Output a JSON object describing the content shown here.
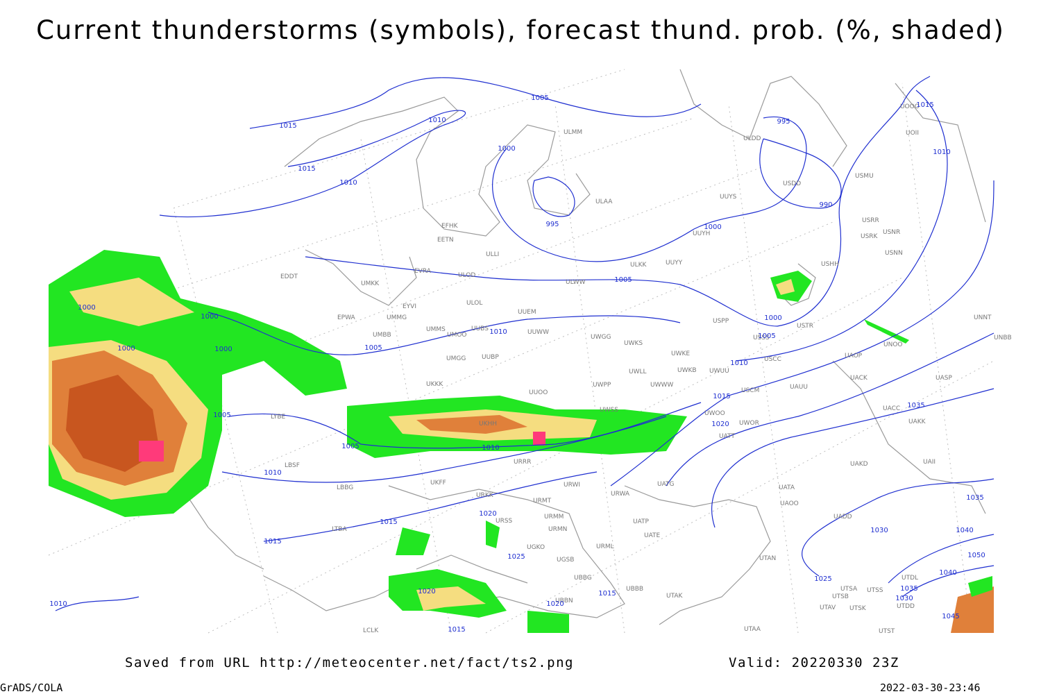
{
  "header": {
    "title": "Current thunderstorms (symbols), forecast thund. prob. (%, shaded)"
  },
  "map": {
    "isobar_labels": [
      1015,
      1015,
      1010,
      1010,
      1005,
      1000,
      995,
      1005,
      1000,
      995,
      990,
      1015,
      1010,
      1000,
      1005,
      1010,
      1015,
      1020,
      1035,
      1035,
      1040,
      1030,
      1050,
      1040,
      1025,
      1035,
      1030,
      1045,
      1000,
      1000,
      1000,
      1000,
      1005,
      1010,
      1005,
      1005,
      1010,
      1010,
      1015,
      1015,
      1020,
      1025,
      1020,
      1020,
      1015,
      1015,
      1010
    ],
    "station_labels": [
      "EFHK",
      "EETN",
      "EVRA",
      "ULOD",
      "UMKK",
      "EYVI",
      "ULOL",
      "UUEM",
      "UMMG",
      "EPWA",
      "UMMS",
      "UMOO",
      "UUBS",
      "UUWW",
      "UMBB",
      "UMGG",
      "UUBP",
      "UKKK",
      "UUOO",
      "UKHH",
      "URRR",
      "UKFF",
      "URKK",
      "URWI",
      "URWA",
      "URMT",
      "URSS",
      "URMM",
      "URMN",
      "UGKO",
      "UGSB",
      "UBBG",
      "UBBN",
      "URML",
      "UBBB",
      "UATG",
      "UATP",
      "UATE",
      "UTAK",
      "UTAA",
      "UATA",
      "UAOO",
      "UADD",
      "UAKD",
      "UTAN",
      "UTSA",
      "UTSS",
      "UTSB",
      "UTAV",
      "UTSK",
      "UTST",
      "UTDL",
      "UTDD",
      "UAII",
      "UAKK",
      "UACC",
      "UASP",
      "UACK",
      "UAOP",
      "UNOO",
      "UNBB",
      "UNNT",
      "USCC",
      "USCM",
      "UAUU",
      "USTR",
      "USSS",
      "USPP",
      "UWKE",
      "UWKB",
      "UWUU",
      "UWLL",
      "UWWW",
      "UWPP",
      "UWGG",
      "UWKS",
      "UWOO",
      "UWOR",
      "UATT",
      "UWSS",
      "ULAA",
      "ULLI",
      "ULWW",
      "ULKK",
      "UUYY",
      "UUYH",
      "UUYS",
      "ULDD",
      "ULMM",
      "USDD",
      "USMU",
      "USRR",
      "USRK",
      "USNR",
      "USNN",
      "USHH",
      "UOOO",
      "UOII",
      "EDDT",
      "LYBE",
      "LBSF",
      "LBBG",
      "LTBA",
      "LCLK"
    ]
  },
  "footer": {
    "source": "Saved from URL http://meteocenter.net/fact/ts2.png",
    "valid": "Valid: 20220330 23Z",
    "software": "GrADS/COLA",
    "timestamp": "2022-03-30-23:46"
  }
}
